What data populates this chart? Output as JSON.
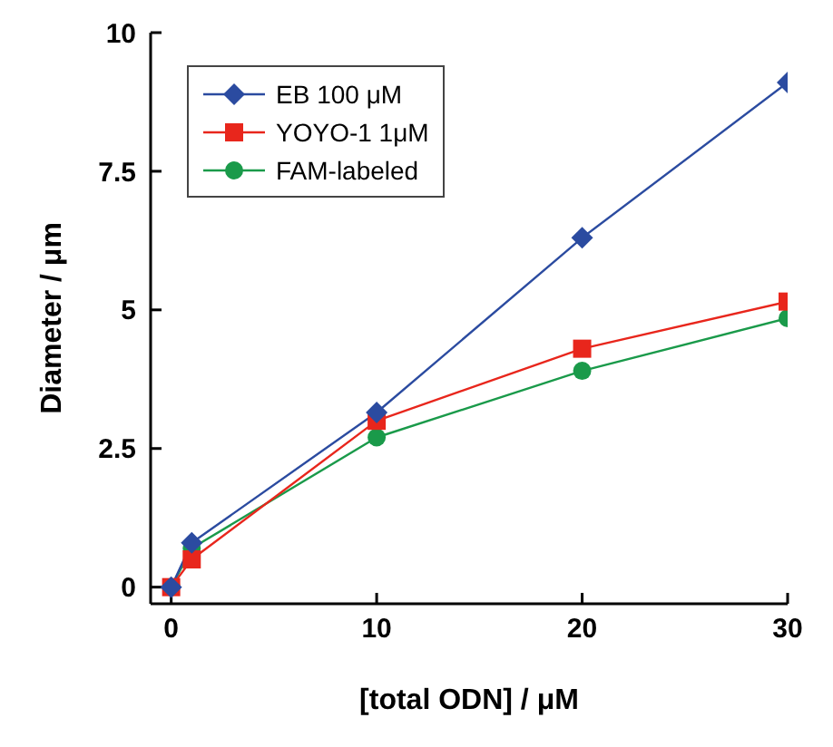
{
  "chart_data": {
    "type": "line",
    "xlabel": "[total ODN] / μM",
    "ylabel": "Diameter / μm",
    "x": [
      0,
      1,
      10,
      20,
      30
    ],
    "series": [
      {
        "name": "EB 100 μM",
        "color": "#2b4ba0",
        "marker": "diamond",
        "values": [
          0,
          0.8,
          3.15,
          6.3,
          9.1
        ]
      },
      {
        "name": "YOYO-1 1μM",
        "color": "#e8261c",
        "marker": "square",
        "values": [
          0,
          0.5,
          3.0,
          4.3,
          5.15
        ]
      },
      {
        "name": "FAM-labeled",
        "color": "#1a9a4a",
        "marker": "circle",
        "values": [
          0,
          0.7,
          2.7,
          3.9,
          4.85
        ]
      }
    ],
    "xlim": [
      -1,
      30
    ],
    "ylim": [
      -0.3,
      10
    ],
    "xticks": [
      0,
      10,
      20,
      30
    ],
    "yticks": [
      0,
      2.5,
      5,
      7.5,
      10
    ],
    "grid": false,
    "legend": "top left",
    "line_style": "solid"
  }
}
